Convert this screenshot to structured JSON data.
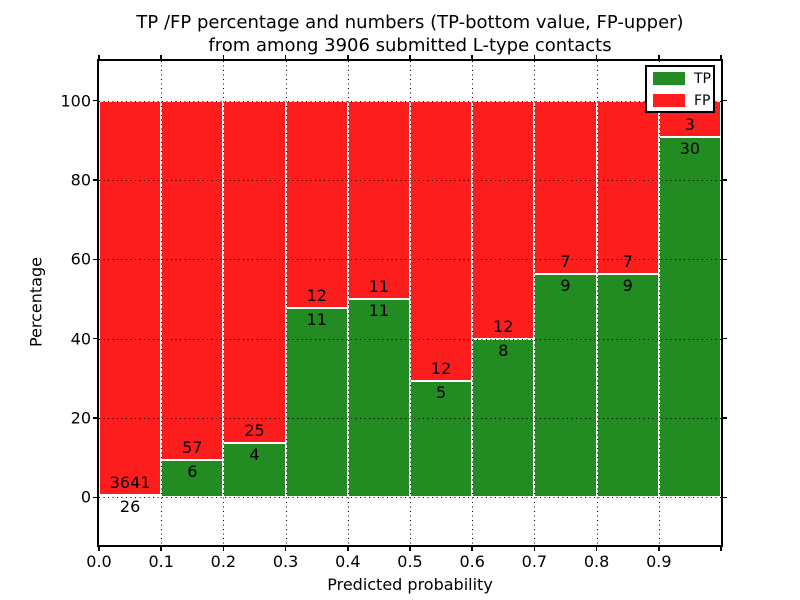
{
  "title": {
    "line1": "TP /FP percentage and numbers (TP-bottom value, FP-upper)",
    "line2": "from among 3906 submitted L-type contacts"
  },
  "chart_data": {
    "type": "bar",
    "stacked": true,
    "title": "TP /FP percentage and numbers (TP-bottom value, FP-upper) from among 3906 submitted L-type contacts",
    "xlabel": "Predicted probability",
    "ylabel": "Percentage",
    "bin_edges": [
      0.0,
      0.1,
      0.2,
      0.3,
      0.4,
      0.5,
      0.6,
      0.7,
      0.8,
      0.9,
      1.0
    ],
    "x_tick_labels": [
      "0.0",
      "0.1",
      "0.2",
      "0.3",
      "0.4",
      "0.5",
      "0.6",
      "0.7",
      "0.8",
      "0.9"
    ],
    "y_tick_labels": [
      0,
      20,
      40,
      60,
      80,
      100
    ],
    "xlim": [
      0.0,
      1.0
    ],
    "ylim": [
      -12,
      110
    ],
    "grid": {
      "style": "dotted",
      "color": "#000000"
    },
    "series": [
      {
        "name": "TP",
        "color": "#228b22",
        "counts": [
          26,
          6,
          4,
          11,
          11,
          5,
          8,
          9,
          9,
          30
        ],
        "percent": [
          0.71,
          9.52,
          13.79,
          47.83,
          50.0,
          29.41,
          40.0,
          56.25,
          56.25,
          90.91
        ]
      },
      {
        "name": "FP",
        "color": "#fd1d1d",
        "counts": [
          3641,
          57,
          25,
          12,
          11,
          12,
          12,
          7,
          7,
          3
        ],
        "percent": [
          99.29,
          90.48,
          86.21,
          52.17,
          50.0,
          70.59,
          60.0,
          43.75,
          43.75,
          9.09
        ]
      }
    ],
    "legend": {
      "position": "upper right",
      "entries": [
        {
          "label": "TP",
          "color": "#228b22"
        },
        {
          "label": "FP",
          "color": "#fd1d1d"
        }
      ]
    }
  }
}
